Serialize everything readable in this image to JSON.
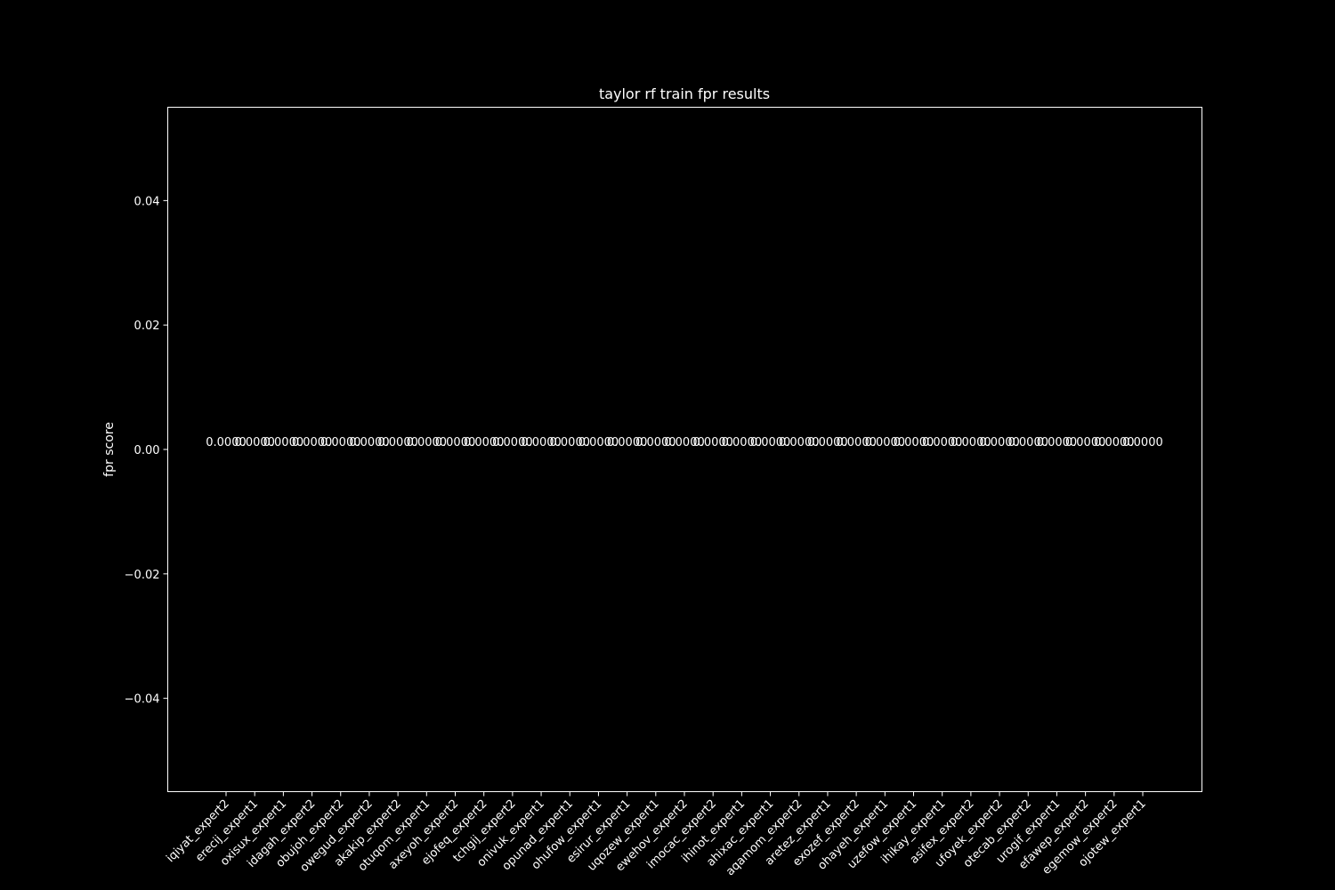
{
  "chart_data": {
    "type": "bar",
    "title": "taylor rf train fpr results",
    "xlabel": "",
    "ylabel": "fpr score",
    "ylim": [
      -0.055,
      0.055
    ],
    "yticks": [
      -0.04,
      -0.02,
      0.0,
      0.02,
      0.04
    ],
    "ytick_labels": [
      "−0.04",
      "−0.02",
      "0.00",
      "0.02",
      "0.04"
    ],
    "grid": false,
    "categories": [
      "iqiyat_expert2",
      "erecij_expert1",
      "oxisux_expert1",
      "idagah_expert2",
      "obujoh_expert2",
      "owegud_expert2",
      "akakip_expert2",
      "otuqom_expert1",
      "axeyoh_expert2",
      "ejofeq_expert2",
      "tchgij_expert2",
      "onivuk_expert1",
      "opunad_expert1",
      "ohufow_expert1",
      "esirur_expert1",
      "uqozew_expert1",
      "ewehov_expert2",
      "imocac_expert2",
      "ihinot_expert1",
      "ahixac_expert1",
      "aqamom_expert2",
      "aretez_expert1",
      "exozef_expert2",
      "ohayeh_expert1",
      "uzefow_expert1",
      "ihikay_expert1",
      "asifex_expert2",
      "ufoyek_expert2",
      "otecab_expert2",
      "urogif_expert1",
      "efawep_expert2",
      "egemow_expert2",
      "ojotew_expert1"
    ],
    "values": [
      0,
      0,
      0,
      0,
      0,
      0,
      0,
      0,
      0,
      0,
      0,
      0,
      0,
      0,
      0,
      0,
      0,
      0,
      0,
      0,
      0,
      0,
      0,
      0,
      0,
      0,
      0,
      0,
      0,
      0,
      0,
      0,
      0
    ],
    "value_labels": [
      "0.0000",
      "0.0000",
      "0.0000",
      "0.0000",
      "0.0000",
      "0.0000",
      "0.0000",
      "0.0000",
      "0.0000",
      "0.0000",
      "0.0000",
      "0.0000",
      "0.0000",
      "0.0000",
      "0.0000",
      "0.0000",
      "0.0000",
      "0.0000",
      "0.0000",
      "0.0000",
      "0.0000",
      "0.0000",
      "0.0000",
      "0.0000",
      "0.0000",
      "0.0000",
      "0.0000",
      "0.0000",
      "0.0000",
      "0.0000",
      "0.0000",
      "0.0000",
      "0.0000"
    ],
    "colors": {
      "background": "#000000",
      "foreground": "#ffffff",
      "bar": "#1f77b4"
    }
  }
}
